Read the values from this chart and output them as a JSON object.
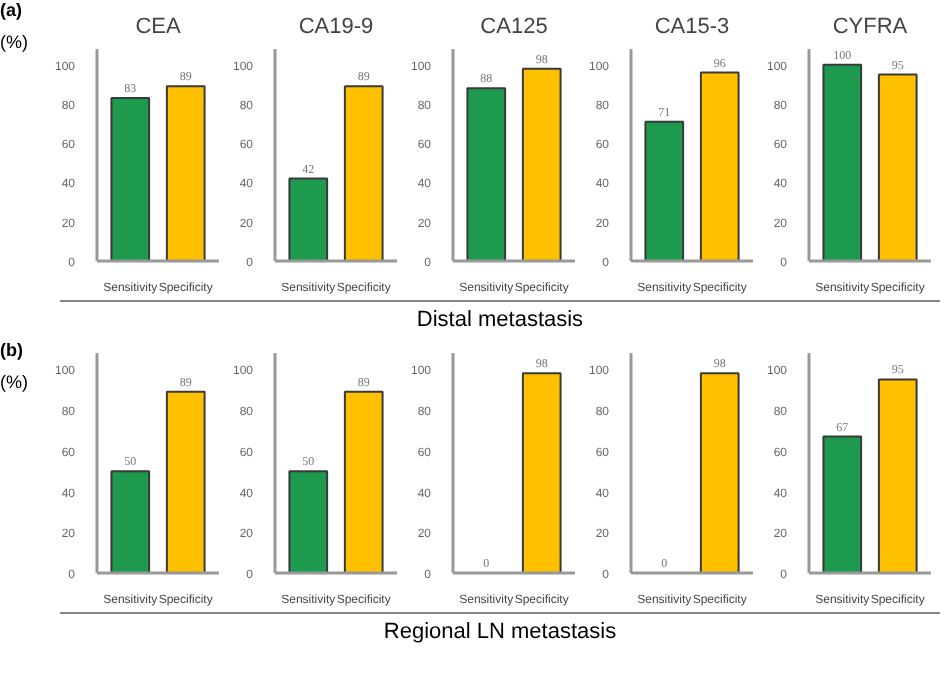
{
  "chart_data": [
    {
      "type": "bar",
      "title": "CEA",
      "ylabel": "(%)",
      "annotations": [
        "(a)"
      ],
      "categories": [
        "Sensitivity",
        "Specificity"
      ],
      "values": [
        83,
        89
      ],
      "colors": [
        "#1e9a4e",
        "#ffc000"
      ],
      "data_labels": true,
      "ylim": [
        0,
        108
      ],
      "yticks": [
        0,
        20,
        40,
        60,
        80,
        100
      ],
      "grid": false
    },
    {
      "type": "bar",
      "title": "CA19-9",
      "categories": [
        "Sensitivity",
        "Specificity"
      ],
      "values": [
        42,
        89
      ],
      "colors": [
        "#1e9a4e",
        "#ffc000"
      ],
      "data_labels": true,
      "ylim": [
        0,
        108
      ],
      "yticks": [
        0,
        20,
        40,
        60,
        80,
        100
      ],
      "grid": false
    },
    {
      "type": "bar",
      "title": "CA125",
      "annotations": [
        "Distal metastasis"
      ],
      "categories": [
        "Sensitivity",
        "Specificity"
      ],
      "values": [
        88,
        98
      ],
      "colors": [
        "#1e9a4e",
        "#ffc000"
      ],
      "data_labels": true,
      "ylim": [
        0,
        108
      ],
      "yticks": [
        0,
        20,
        40,
        60,
        80,
        100
      ],
      "grid": false
    },
    {
      "type": "bar",
      "title": "CA15-3",
      "categories": [
        "Sensitivity",
        "Specificity"
      ],
      "values": [
        71,
        96
      ],
      "colors": [
        "#1e9a4e",
        "#ffc000"
      ],
      "data_labels": true,
      "ylim": [
        0,
        108
      ],
      "yticks": [
        0,
        20,
        40,
        60,
        80,
        100
      ],
      "grid": false
    },
    {
      "type": "bar",
      "title": "CYFRA",
      "categories": [
        "Sensitivity",
        "Specificity"
      ],
      "values": [
        100,
        95
      ],
      "colors": [
        "#1e9a4e",
        "#ffc000"
      ],
      "data_labels": true,
      "ylim": [
        0,
        108
      ],
      "yticks": [
        0,
        20,
        40,
        60,
        80,
        100
      ],
      "grid": false
    },
    {
      "type": "bar",
      "ylabel": "(%)",
      "annotations": [
        "(b)"
      ],
      "categories": [
        "Sensitivity",
        "Specificity"
      ],
      "values": [
        50,
        89
      ],
      "colors": [
        "#1e9a4e",
        "#ffc000"
      ],
      "data_labels": true,
      "ylim": [
        0,
        108
      ],
      "yticks": [
        0,
        20,
        40,
        60,
        80,
        100
      ],
      "grid": false
    },
    {
      "type": "bar",
      "categories": [
        "Sensitivity",
        "Specificity"
      ],
      "values": [
        50,
        89
      ],
      "colors": [
        "#1e9a4e",
        "#ffc000"
      ],
      "data_labels": true,
      "ylim": [
        0,
        108
      ],
      "yticks": [
        0,
        20,
        40,
        60,
        80,
        100
      ],
      "grid": false
    },
    {
      "type": "bar",
      "annotations": [
        "Regional LN metastasis"
      ],
      "categories": [
        "Sensitivity",
        "Specificity"
      ],
      "values": [
        0,
        98
      ],
      "colors": [
        "#1e9a4e",
        "#ffc000"
      ],
      "data_labels": true,
      "ylim": [
        0,
        108
      ],
      "yticks": [
        0,
        20,
        40,
        60,
        80,
        100
      ],
      "grid": false
    },
    {
      "type": "bar",
      "categories": [
        "Sensitivity",
        "Specificity"
      ],
      "values": [
        0,
        98
      ],
      "colors": [
        "#1e9a4e",
        "#ffc000"
      ],
      "data_labels": true,
      "ylim": [
        0,
        108
      ],
      "yticks": [
        0,
        20,
        40,
        60,
        80,
        100
      ],
      "grid": false
    },
    {
      "type": "bar",
      "categories": [
        "Sensitivity",
        "Specificity"
      ],
      "values": [
        67,
        95
      ],
      "colors": [
        "#1e9a4e",
        "#ffc000"
      ],
      "data_labels": true,
      "ylim": [
        0,
        108
      ],
      "yticks": [
        0,
        20,
        40,
        60,
        80,
        100
      ],
      "grid": false
    }
  ]
}
